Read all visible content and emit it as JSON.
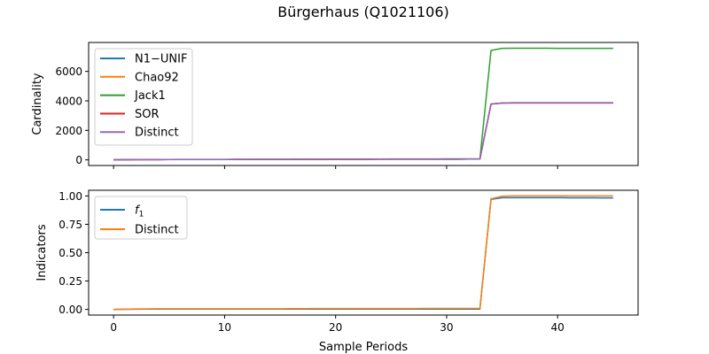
{
  "figure": {
    "title": "Bürgerhaus (Q1021106)",
    "xlabel": "Sample Periods"
  },
  "chart_data": [
    {
      "type": "line",
      "ylabel": "Cardinality",
      "xlim": [
        -2.25,
        47.25
      ],
      "ylim": [
        -380,
        7960
      ],
      "xticks": [
        0,
        10,
        20,
        30,
        40
      ],
      "xtick_labels_visible": false,
      "yticks": [
        0,
        2000,
        4000,
        6000
      ],
      "ytick_labels": [
        "0",
        "2000",
        "4000",
        "6000"
      ],
      "legend_position": "upper-left",
      "grid": false,
      "x": [
        0,
        1,
        2,
        3,
        4,
        5,
        6,
        7,
        8,
        9,
        10,
        11,
        12,
        13,
        14,
        15,
        16,
        17,
        18,
        19,
        20,
        21,
        22,
        23,
        24,
        25,
        26,
        27,
        28,
        29,
        30,
        31,
        32,
        33,
        34,
        35,
        36,
        37,
        38,
        39,
        40,
        41,
        42,
        43,
        44,
        45
      ],
      "series": [
        {
          "name": "N1−UNIF",
          "color": "#1f77b4",
          "values": [
            5,
            10,
            14,
            17,
            20,
            22,
            24,
            25,
            26,
            27,
            28,
            29,
            30,
            31,
            33,
            34,
            35,
            37,
            38,
            39,
            40,
            41,
            42,
            43,
            44,
            45,
            46,
            47,
            48,
            49,
            50,
            51,
            52,
            53,
            3780,
            3850,
            3860,
            3860,
            3860,
            3860,
            3860,
            3860,
            3860,
            3860,
            3860,
            3860
          ]
        },
        {
          "name": "Chao92",
          "color": "#ff7f0e",
          "values": [
            5,
            10,
            14,
            17,
            20,
            22,
            24,
            25,
            26,
            27,
            28,
            29,
            30,
            31,
            33,
            34,
            35,
            37,
            38,
            39,
            40,
            41,
            42,
            43,
            44,
            45,
            46,
            47,
            48,
            49,
            50,
            51,
            52,
            53,
            3780,
            3850,
            3860,
            3860,
            3860,
            3860,
            3860,
            3860,
            3860,
            3860,
            3860,
            3860
          ]
        },
        {
          "name": "Jack1",
          "color": "#2ca02c",
          "values": [
            8,
            14,
            18,
            22,
            25,
            27,
            29,
            30,
            31,
            32,
            33,
            34,
            35,
            37,
            40,
            41,
            43,
            47,
            48,
            50,
            52,
            53,
            55,
            57,
            58,
            60,
            62,
            63,
            65,
            66,
            68,
            69,
            71,
            72,
            7420,
            7560,
            7570,
            7570,
            7570,
            7570,
            7560,
            7560,
            7560,
            7560,
            7560,
            7560
          ]
        },
        {
          "name": "SOR",
          "color": "#d62728",
          "values": [
            5,
            10,
            14,
            17,
            20,
            22,
            24,
            25,
            26,
            27,
            28,
            29,
            30,
            31,
            33,
            34,
            35,
            37,
            38,
            39,
            40,
            41,
            42,
            43,
            44,
            45,
            46,
            47,
            48,
            49,
            50,
            51,
            52,
            53,
            3790,
            3860,
            3870,
            3870,
            3870,
            3870,
            3870,
            3870,
            3870,
            3870,
            3870,
            3870
          ]
        },
        {
          "name": "Distinct",
          "color": "#9467bd",
          "values": [
            5,
            10,
            14,
            17,
            20,
            22,
            24,
            25,
            26,
            27,
            28,
            29,
            30,
            31,
            33,
            34,
            35,
            37,
            38,
            39,
            40,
            41,
            42,
            43,
            44,
            45,
            46,
            47,
            48,
            49,
            50,
            51,
            52,
            53,
            3790,
            3860,
            3870,
            3870,
            3870,
            3870,
            3870,
            3870,
            3870,
            3870,
            3870,
            3870
          ]
        }
      ]
    },
    {
      "type": "line",
      "ylabel": "Indicators",
      "xlim": [
        -2.25,
        47.25
      ],
      "ylim": [
        -0.05,
        1.05
      ],
      "xticks": [
        0,
        10,
        20,
        30,
        40
      ],
      "xtick_labels": [
        "0",
        "10",
        "20",
        "30",
        "40"
      ],
      "yticks": [
        0.0,
        0.25,
        0.5,
        0.75,
        1.0
      ],
      "ytick_labels": [
        "0.00",
        "0.25",
        "0.50",
        "0.75",
        "1.00"
      ],
      "legend_position": "upper-left",
      "grid": false,
      "x": [
        0,
        1,
        2,
        3,
        4,
        5,
        6,
        7,
        8,
        9,
        10,
        11,
        12,
        13,
        14,
        15,
        16,
        17,
        18,
        19,
        20,
        21,
        22,
        23,
        24,
        25,
        26,
        27,
        28,
        29,
        30,
        31,
        32,
        33,
        34,
        35,
        36,
        37,
        38,
        39,
        40,
        41,
        42,
        43,
        44,
        45
      ],
      "series": [
        {
          "name": "f1",
          "label_main": "f",
          "label_sub": "1",
          "color": "#1f77b4",
          "values": [
            0.0,
            0.001,
            0.002,
            0.003,
            0.003,
            0.003,
            0.003,
            0.003,
            0.003,
            0.003,
            0.003,
            0.003,
            0.003,
            0.003,
            0.003,
            0.003,
            0.003,
            0.003,
            0.003,
            0.003,
            0.003,
            0.003,
            0.003,
            0.003,
            0.003,
            0.003,
            0.003,
            0.003,
            0.003,
            0.003,
            0.003,
            0.003,
            0.003,
            0.003,
            0.97,
            0.985,
            0.985,
            0.985,
            0.985,
            0.985,
            0.985,
            0.984,
            0.984,
            0.984,
            0.983,
            0.983
          ]
        },
        {
          "name": "Distinct",
          "color": "#ff7f0e",
          "values": [
            0.0,
            0.002,
            0.004,
            0.005,
            0.006,
            0.006,
            0.006,
            0.006,
            0.006,
            0.006,
            0.006,
            0.006,
            0.006,
            0.006,
            0.006,
            0.006,
            0.007,
            0.007,
            0.008,
            0.008,
            0.008,
            0.008,
            0.008,
            0.008,
            0.008,
            0.008,
            0.008,
            0.008,
            0.009,
            0.009,
            0.009,
            0.009,
            0.009,
            0.009,
            0.975,
            0.998,
            1.0,
            1.0,
            1.0,
            1.0,
            1.0,
            1.0,
            1.0,
            1.0,
            1.0,
            1.0
          ]
        }
      ]
    }
  ]
}
